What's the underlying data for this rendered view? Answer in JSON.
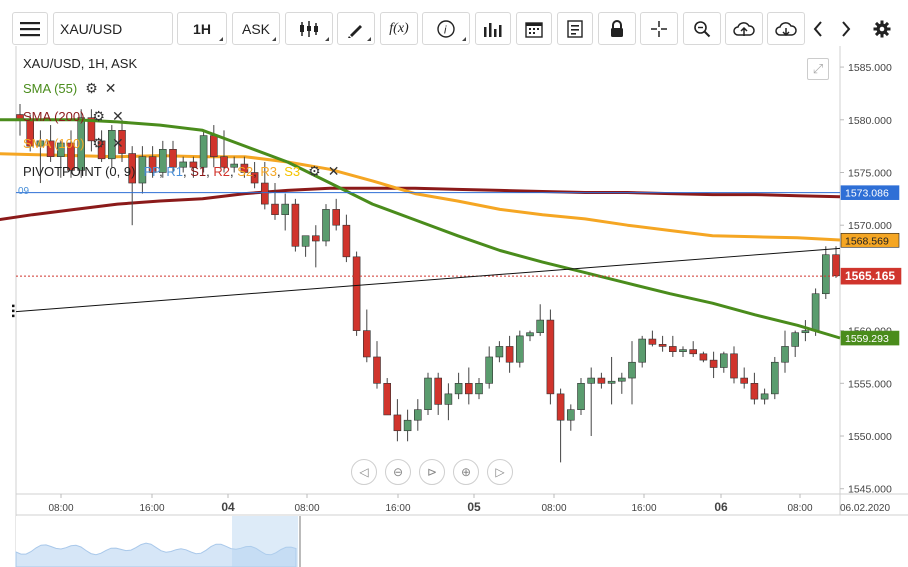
{
  "toolbar": {
    "menu_icon": "hamburger-menu-icon",
    "symbol": "XAU/USD",
    "timeframe": "1H",
    "price_side": "ASK",
    "icons": [
      "candles-icon",
      "draw-pencil-icon",
      "fx-indicator-icon",
      "info-icon",
      "bar-volume-icon",
      "calendar-icon",
      "report-icon",
      "lock-icon",
      "crosshair-icon",
      "zoom-icon",
      "cloud-upload-icon",
      "cloud-download-icon",
      "chevron-left-icon",
      "chevron-right-icon",
      "gear-icon"
    ],
    "fx_label": "f(x)"
  },
  "legend": {
    "title": "XAU/USD, 1H, ASK",
    "indicators": [
      {
        "label": "SMA (55)",
        "color": "#4a8c1c"
      },
      {
        "label": "SMA (200)",
        "color": "#8b1a1a"
      },
      {
        "label": "SMA (100)",
        "color": "#f5a623"
      }
    ],
    "pivot": {
      "label": "PIVOTPOINT (0, 9)",
      "items": [
        {
          "label": "PP",
          "color": "#4a90d9"
        },
        {
          "label": "R1",
          "color": "#4a90d9"
        },
        {
          "label": "S1",
          "color": "#8b1a1a"
        },
        {
          "label": "R2",
          "color": "#d0342c"
        },
        {
          "label": "S2",
          "color": "#f5a623"
        },
        {
          "label": "R3",
          "color": "#f5a623"
        },
        {
          "label": "S3",
          "color": "#f5c400"
        }
      ]
    },
    "left_edge_label": "09"
  },
  "price_axis": {
    "ticks": [
      "1585.000",
      "1580.000",
      "1575.000",
      "1570.000",
      "1560.000",
      "1555.000",
      "1550.000",
      "1545.000"
    ],
    "badges": [
      {
        "value": "1573.086",
        "bg": "#2e6fd6",
        "fg": "#ffffff"
      },
      {
        "value": "1568.569",
        "bg": "#f5a623",
        "fg": "#222222"
      },
      {
        "value": "1565.165",
        "bg": "#d0342c",
        "fg": "#ffffff"
      },
      {
        "value": "1559.293",
        "bg": "#4a8c1c",
        "fg": "#ffffff"
      }
    ]
  },
  "time_axis": {
    "labels": [
      "08:00",
      "16:00",
      "04",
      "08:00",
      "16:00",
      "05",
      "08:00",
      "16:00",
      "06",
      "08:00"
    ],
    "end_date": "06.02.2020"
  },
  "chart_data": {
    "type": "candlestick",
    "symbol": "XAU/USD",
    "interval": "1H",
    "ylim": [
      1544.5,
      1587
    ],
    "candles": [
      [
        1580.5,
        1581.5,
        1578.5,
        1580.0
      ],
      [
        1580.0,
        1580.5,
        1577.0,
        1577.5
      ],
      [
        1577.5,
        1579.0,
        1574.0,
        1578.0
      ],
      [
        1578.0,
        1579.5,
        1576.0,
        1576.5
      ],
      [
        1576.5,
        1578.0,
        1574.5,
        1577.8
      ],
      [
        1577.8,
        1579.0,
        1574.5,
        1575.2
      ],
      [
        1575.2,
        1581.0,
        1574.5,
        1580.2
      ],
      [
        1580.2,
        1581.0,
        1577.0,
        1578.0
      ],
      [
        1578.0,
        1579.0,
        1576.0,
        1576.3
      ],
      [
        1576.3,
        1579.5,
        1575.5,
        1579.0
      ],
      [
        1579.0,
        1580.0,
        1576.0,
        1576.8
      ],
      [
        1576.8,
        1577.5,
        1570.0,
        1574.0
      ],
      [
        1574.0,
        1577.5,
        1573.0,
        1576.5
      ],
      [
        1576.5,
        1577.5,
        1574.5,
        1575.0
      ],
      [
        1575.0,
        1578.0,
        1574.5,
        1577.2
      ],
      [
        1577.2,
        1578.0,
        1575.0,
        1575.5
      ],
      [
        1575.5,
        1576.5,
        1575.0,
        1576.0
      ],
      [
        1576.0,
        1576.5,
        1574.5,
        1575.5
      ],
      [
        1575.5,
        1579.0,
        1575.0,
        1578.5
      ],
      [
        1578.5,
        1579.5,
        1575.5,
        1576.5
      ],
      [
        1576.5,
        1579.0,
        1575.0,
        1575.5
      ],
      [
        1575.5,
        1576.5,
        1575.0,
        1575.8
      ],
      [
        1575.8,
        1576.5,
        1574.5,
        1575.0
      ],
      [
        1575.0,
        1576.0,
        1573.5,
        1574.0
      ],
      [
        1574.0,
        1576.0,
        1571.5,
        1572.0
      ],
      [
        1572.0,
        1574.0,
        1570.5,
        1571.0
      ],
      [
        1571.0,
        1573.0,
        1569.5,
        1572.0
      ],
      [
        1572.0,
        1572.5,
        1567.5,
        1568.0
      ],
      [
        1568.0,
        1569.0,
        1567.0,
        1569.0
      ],
      [
        1569.0,
        1570.0,
        1566.0,
        1568.5
      ],
      [
        1568.5,
        1572.0,
        1568.0,
        1571.5
      ],
      [
        1571.5,
        1572.5,
        1569.5,
        1570.0
      ],
      [
        1570.0,
        1571.0,
        1566.5,
        1567.0
      ],
      [
        1567.0,
        1567.5,
        1559.5,
        1560.0
      ],
      [
        1560.0,
        1562.0,
        1557.0,
        1557.5
      ],
      [
        1557.5,
        1559.0,
        1554.5,
        1555.0
      ],
      [
        1555.0,
        1555.5,
        1552.0,
        1552.0
      ],
      [
        1552.0,
        1553.5,
        1549.5,
        1550.5
      ],
      [
        1550.5,
        1552.5,
        1549.5,
        1551.5
      ],
      [
        1551.5,
        1553.5,
        1550.5,
        1552.5
      ],
      [
        1552.5,
        1556.0,
        1552.0,
        1555.5
      ],
      [
        1555.5,
        1556.0,
        1552.0,
        1553.0
      ],
      [
        1553.0,
        1555.0,
        1551.5,
        1554.0
      ],
      [
        1554.0,
        1556.0,
        1553.5,
        1555.0
      ],
      [
        1555.0,
        1556.5,
        1553.0,
        1554.0
      ],
      [
        1554.0,
        1555.5,
        1553.5,
        1555.0
      ],
      [
        1555.0,
        1558.5,
        1554.5,
        1557.5
      ],
      [
        1557.5,
        1559.0,
        1557.0,
        1558.5
      ],
      [
        1558.5,
        1559.5,
        1556.0,
        1557.0
      ],
      [
        1557.0,
        1560.0,
        1556.5,
        1559.5
      ],
      [
        1559.5,
        1560.0,
        1559.0,
        1559.8
      ],
      [
        1559.8,
        1562.5,
        1559.5,
        1561.0
      ],
      [
        1561.0,
        1562.0,
        1553.0,
        1554.0
      ],
      [
        1554.0,
        1554.5,
        1547.5,
        1551.5
      ],
      [
        1551.5,
        1553.0,
        1550.5,
        1552.5
      ],
      [
        1552.5,
        1555.5,
        1552.0,
        1555.0
      ],
      [
        1555.0,
        1556.5,
        1550.0,
        1555.5
      ],
      [
        1555.5,
        1556.0,
        1554.5,
        1555.0
      ],
      [
        1555.0,
        1557.5,
        1553.0,
        1555.2
      ],
      [
        1555.2,
        1556.0,
        1554.0,
        1555.5
      ],
      [
        1555.5,
        1559.0,
        1553.0,
        1557.0
      ],
      [
        1557.0,
        1559.5,
        1556.5,
        1559.2
      ],
      [
        1559.2,
        1560.0,
        1558.5,
        1558.7
      ],
      [
        1558.7,
        1559.5,
        1558.0,
        1558.5
      ],
      [
        1558.5,
        1559.5,
        1557.5,
        1558.0
      ],
      [
        1558.0,
        1558.5,
        1557.5,
        1558.2
      ],
      [
        1558.2,
        1559.0,
        1557.5,
        1557.8
      ],
      [
        1557.8,
        1558.0,
        1557.0,
        1557.2
      ],
      [
        1557.2,
        1558.0,
        1555.5,
        1556.5
      ],
      [
        1556.5,
        1558.0,
        1556.0,
        1557.8
      ],
      [
        1557.8,
        1558.5,
        1555.0,
        1555.5
      ],
      [
        1555.5,
        1556.5,
        1554.5,
        1555.0
      ],
      [
        1555.0,
        1556.0,
        1553.0,
        1553.5
      ],
      [
        1553.5,
        1554.5,
        1553.0,
        1554.0
      ],
      [
        1554.0,
        1557.5,
        1553.5,
        1557.0
      ],
      [
        1557.0,
        1560.0,
        1556.0,
        1558.5
      ],
      [
        1558.5,
        1560.0,
        1557.5,
        1559.8
      ],
      [
        1559.8,
        1561.0,
        1559.0,
        1560.0
      ],
      [
        1560.0,
        1564.0,
        1559.5,
        1563.5
      ],
      [
        1563.5,
        1568.0,
        1563.0,
        1567.2
      ],
      [
        1567.2,
        1568.0,
        1565.0,
        1565.2
      ]
    ],
    "sma_55": [
      1580.0,
      1580.0,
      1580.0,
      1579.8,
      1579.5,
      1579.0,
      1577.5,
      1576.0,
      1574.0,
      1572.0,
      1570.5,
      1569.0,
      1567.6,
      1566.5,
      1565.5,
      1564.5,
      1563.5,
      1562.6,
      1561.5,
      1560.5,
      1559.3
    ],
    "sma_100": [
      1576.8,
      1576.7,
      1576.6,
      1576.5,
      1576.6,
      1576.5,
      1576.5,
      1576.0,
      1575.3,
      1574.2,
      1573.0,
      1572.3,
      1571.5,
      1571.0,
      1570.6,
      1570.0,
      1569.5,
      1569.0,
      1568.9,
      1568.8,
      1568.6
    ],
    "sma_200": [
      1570.4,
      1571.0,
      1571.5,
      1572.0,
      1572.3,
      1572.5,
      1573.0,
      1573.3,
      1573.5,
      1573.5,
      1573.5,
      1573.4,
      1573.3,
      1573.2,
      1573.1,
      1573.1,
      1573.0,
      1572.9,
      1572.9,
      1572.8,
      1572.7
    ],
    "pivot_line": 1573.086,
    "last_price": 1565.165,
    "trendline": {
      "from": 1561.8,
      "to": 1567.8
    }
  }
}
